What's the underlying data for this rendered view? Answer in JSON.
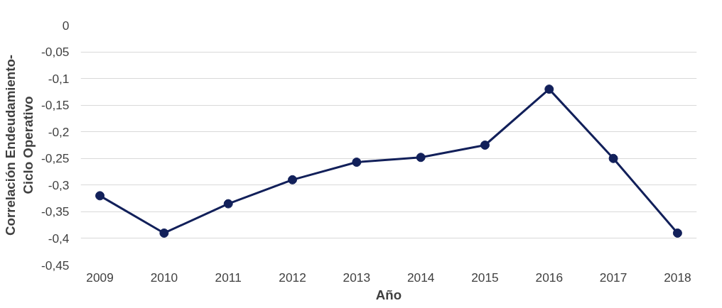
{
  "chart_data": {
    "type": "line",
    "xlabel": "Año",
    "ylabel": "Correlación Endeudamiento-\nCiclo Operativo",
    "categories": [
      "2009",
      "2010",
      "2011",
      "2012",
      "2013",
      "2014",
      "2015",
      "2016",
      "2017",
      "2018"
    ],
    "series": [
      {
        "color": "#12205a",
        "values": [
          -0.32,
          -0.39,
          -0.335,
          -0.29,
          -0.257,
          -0.248,
          -0.225,
          -0.12,
          -0.25,
          -0.39
        ]
      }
    ],
    "ylim": [
      -0.45,
      0
    ],
    "yticks": [
      {
        "value": 0,
        "label": "0"
      },
      {
        "value": -0.05,
        "label": "-0,05"
      },
      {
        "value": -0.1,
        "label": "-0,1"
      },
      {
        "value": -0.15,
        "label": "-0,15"
      },
      {
        "value": -0.2,
        "label": "-0,2"
      },
      {
        "value": -0.25,
        "label": "-0,25"
      },
      {
        "value": -0.3,
        "label": "-0,3"
      },
      {
        "value": -0.35,
        "label": "-0,35"
      },
      {
        "value": -0.4,
        "label": "-0,4"
      },
      {
        "value": -0.45,
        "label": "-0,45"
      }
    ],
    "grid": "y",
    "marker": "circle",
    "line_style": "solid"
  }
}
